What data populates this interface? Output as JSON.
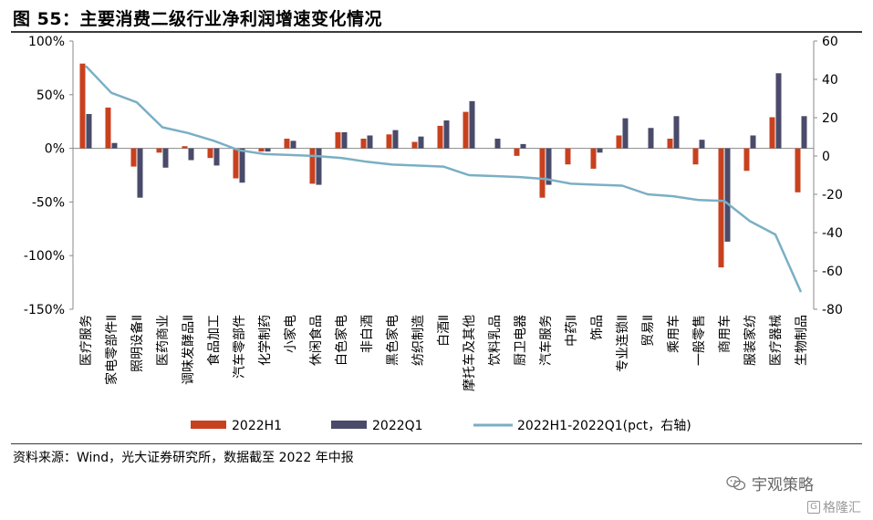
{
  "figure": {
    "title": "图 55：主要消费二级行业净利润增速变化情况",
    "source": "资料来源：Wind，光大证券研究所，数据截至 2022 年中报",
    "watermark": "宇观策略",
    "watermark2": "格隆汇",
    "watermark2_badge": "G"
  },
  "chart_data": {
    "type": "bar",
    "categories": [
      "医疗服务",
      "家电零部件Ⅱ",
      "照明设备Ⅱ",
      "医药商业",
      "调味发酵品Ⅱ",
      "食品加工",
      "汽车零部件",
      "化学制药",
      "小家电",
      "休闲食品",
      "白色家电",
      "非白酒",
      "黑色家电",
      "纺织制造",
      "白酒Ⅱ",
      "摩托车及其他",
      "饮料乳品",
      "厨卫电器",
      "汽车服务",
      "中药Ⅱ",
      "饰品",
      "专业连锁Ⅱ",
      "贸易Ⅱ",
      "乘用车",
      "一般零售",
      "商用车",
      "服装家纺",
      "医疗器械",
      "生物制品"
    ],
    "series": [
      {
        "name": "2022H1",
        "axis": "left",
        "color": "#c8411f",
        "values": [
          79,
          38,
          -17,
          -4,
          2,
          -9,
          -28,
          -3,
          9,
          -33,
          15,
          9,
          13,
          6,
          21,
          34,
          0,
          -7,
          -46,
          -15,
          -19,
          12,
          0,
          9,
          -15,
          -111,
          -21,
          29,
          -41
        ]
      },
      {
        "name": "2022Q1",
        "axis": "left",
        "color": "#4a4a6a",
        "values": [
          32,
          5,
          -46,
          -18,
          -11,
          -16,
          -32,
          -3,
          7,
          -34,
          15,
          12,
          17,
          11,
          26,
          44,
          9,
          4,
          -34,
          0,
          -4,
          28,
          19,
          30,
          8,
          -87,
          12,
          70,
          30
        ]
      },
      {
        "name": "2022H1-2022Q1(pct，右轴)",
        "axis": "right",
        "type": "line",
        "color": "#7aafc4",
        "values": [
          47,
          33,
          28,
          15,
          12,
          8,
          3,
          1,
          0.5,
          0,
          -1,
          -3,
          -4.5,
          -5,
          -5.5,
          -10,
          -10.5,
          -11,
          -12,
          -14.5,
          -15,
          -15.5,
          -20,
          -21,
          -23,
          -23.5,
          -34,
          -41,
          -71
        ]
      }
    ],
    "y_left": {
      "min": -150,
      "max": 100,
      "ticks": [
        "100%",
        "50%",
        "0%",
        "-50%",
        "-100%",
        "-150%"
      ],
      "tick_values": [
        100,
        50,
        0,
        -50,
        -100,
        -150
      ]
    },
    "y_right": {
      "min": -80,
      "max": 60,
      "ticks": [
        "60",
        "40",
        "20",
        "0",
        "-20",
        "-40",
        "-60",
        "-80"
      ],
      "tick_values": [
        60,
        40,
        20,
        0,
        -20,
        -40,
        -60,
        -80
      ]
    },
    "legend": {
      "position": "bottom"
    },
    "grid": false
  }
}
